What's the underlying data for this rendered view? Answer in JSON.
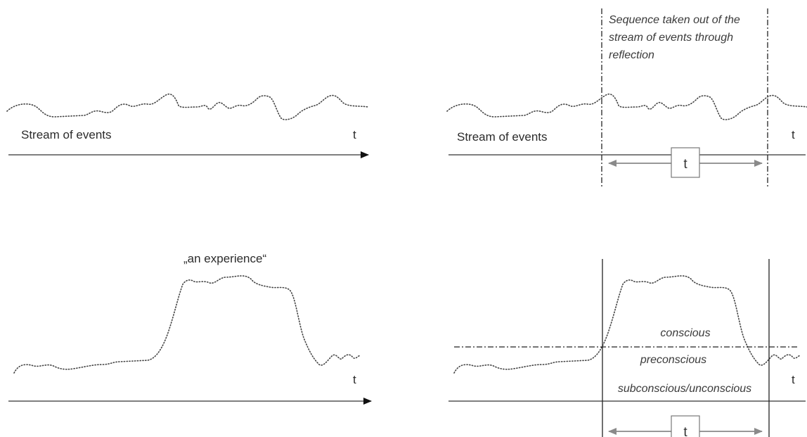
{
  "panels": {
    "top_left": {
      "stream_label": "Stream of events",
      "axis_label": "t"
    },
    "top_right": {
      "stream_label": "Stream of events",
      "axis_label": "t",
      "sequence_note": [
        "Sequence taken out of the",
        "stream of events through",
        "reflection"
      ],
      "span_label": "t"
    },
    "bottom_left": {
      "experience_label": "„an experience“",
      "axis_label": "t"
    },
    "bottom_right": {
      "axis_label": "t",
      "level_conscious": "conscious",
      "level_preconscious": "preconscious",
      "level_subconscious": "subconscious/unconscious",
      "span_label": "t"
    }
  }
}
